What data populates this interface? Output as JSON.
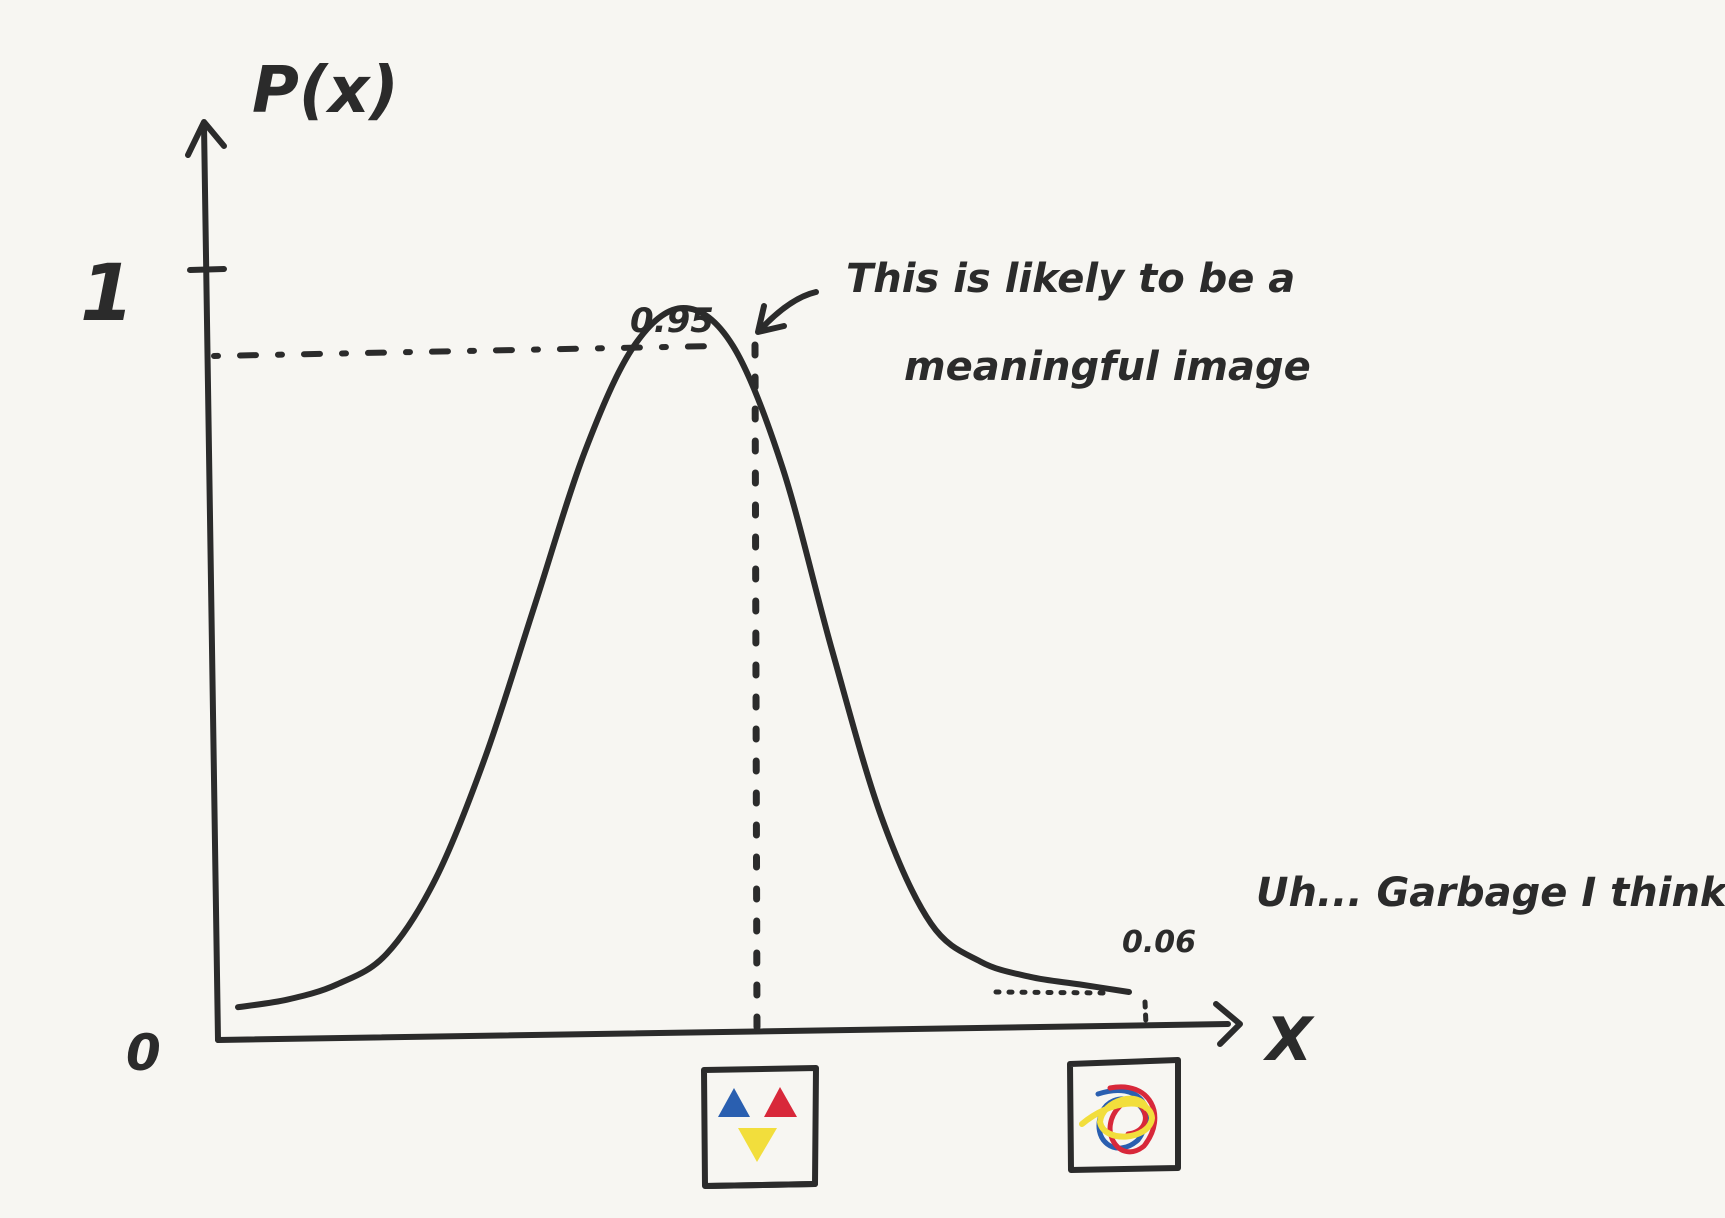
{
  "axis": {
    "y_label": "P(x)",
    "x_label": "X",
    "y_tick_one": "1",
    "origin": "0"
  },
  "annotations": {
    "peak_value": "0.95",
    "tail_value": "0.06",
    "peak_note_line1": "This is likely to be a",
    "peak_note_line2": "meaningful image",
    "tail_note": "Uh... Garbage I think?"
  },
  "thumbnails": {
    "meaningful": {
      "colors": [
        "#2a5fb0",
        "#d8283a",
        "#f2de3c"
      ]
    },
    "garbage": {
      "colors": [
        "#f2de3c",
        "#d8283a",
        "#2a5fb0"
      ]
    }
  },
  "chart_data": {
    "type": "line",
    "x": [
      0,
      5,
      10,
      15,
      20,
      25,
      30,
      35,
      40,
      45,
      50,
      55,
      60,
      65,
      70,
      75,
      80,
      85,
      90
    ],
    "series": [
      {
        "values": [
          0.03,
          0.04,
          0.06,
          0.1,
          0.2,
          0.36,
          0.56,
          0.76,
          0.9,
          0.95,
          0.9,
          0.74,
          0.5,
          0.28,
          0.14,
          0.09,
          0.07,
          0.06,
          0.05
        ]
      }
    ],
    "marked_points": [
      {
        "label": "0.95",
        "y": 0.95
      },
      {
        "label": "0.06",
        "y": 0.06
      }
    ],
    "ylim": [
      0,
      1.2
    ],
    "xlim": [
      0,
      100
    ],
    "grid": false
  }
}
